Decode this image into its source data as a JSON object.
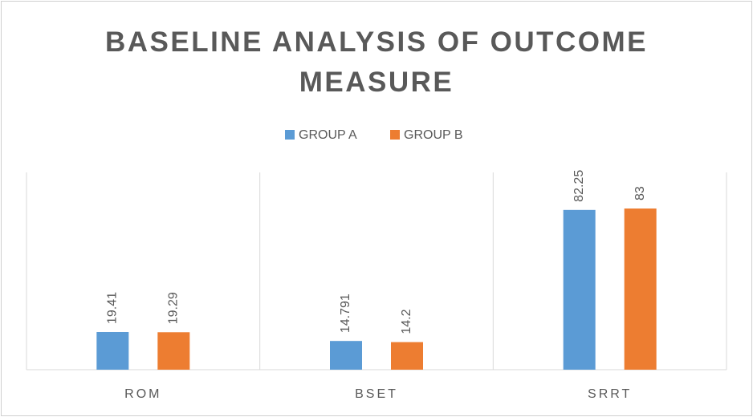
{
  "chart_data": {
    "type": "bar",
    "title": "BASELINE ANALYSIS OF OUTCOME MEASURE",
    "categories": [
      "ROM",
      "BSET",
      "SRRT"
    ],
    "series": [
      {
        "name": "GROUP A",
        "color": "#5b9bd5",
        "values": [
          19.41,
          14.791,
          82.25
        ]
      },
      {
        "name": "GROUP B",
        "color": "#ed7d31",
        "values": [
          19.29,
          14.2,
          83
        ]
      }
    ],
    "legend": "top"
  }
}
